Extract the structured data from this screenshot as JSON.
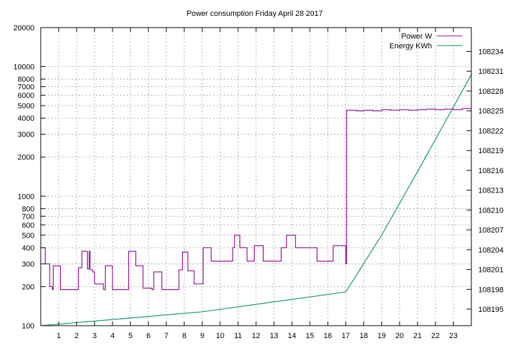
{
  "chart_data": {
    "type": "line",
    "title": "Power consumption Friday April 28 2017",
    "grid": true,
    "legend_position": "top-right",
    "x_axis": {
      "range": [
        0,
        24
      ],
      "ticks": [
        1,
        2,
        3,
        4,
        5,
        6,
        7,
        8,
        9,
        10,
        11,
        12,
        13,
        14,
        15,
        16,
        17,
        18,
        19,
        20,
        21,
        22,
        23
      ]
    },
    "y_axis_left": {
      "scale": "log",
      "range": [
        100,
        20000
      ],
      "ticks": [
        100,
        200,
        300,
        400,
        500,
        600,
        700,
        800,
        1000,
        2000,
        3000,
        4000,
        5000,
        6000,
        7000,
        8000,
        10000,
        20000
      ],
      "tick_labels": [
        "100",
        "200",
        "300",
        "400",
        "500",
        "600",
        "700",
        "800",
        "1000",
        "2000",
        "3000",
        "4000",
        "5000",
        "6000",
        "7000",
        "8000",
        "10000",
        "20000"
      ]
    },
    "y_axis_right": {
      "scale": "linear",
      "range": [
        108192.5,
        108237.6
      ],
      "ticks": [
        108195,
        108198,
        108201,
        108204,
        108207,
        108210,
        108213,
        108216,
        108219,
        108222,
        108225,
        108228,
        108231,
        108234
      ]
    },
    "series": [
      {
        "name": "Power W",
        "axis": "left",
        "color": "#8b008b",
        "step": true,
        "points": [
          [
            0.0,
            400
          ],
          [
            0.25,
            300
          ],
          [
            0.5,
            200
          ],
          [
            0.65,
            190
          ],
          [
            0.7,
            290
          ],
          [
            1.1,
            190
          ],
          [
            2.1,
            280
          ],
          [
            2.3,
            375
          ],
          [
            2.6,
            275
          ],
          [
            2.7,
            375
          ],
          [
            2.75,
            270
          ],
          [
            2.9,
            260
          ],
          [
            3.0,
            210
          ],
          [
            3.5,
            190
          ],
          [
            3.6,
            290
          ],
          [
            4.0,
            190
          ],
          [
            4.9,
            375
          ],
          [
            5.3,
            290
          ],
          [
            5.7,
            195
          ],
          [
            6.2,
            190
          ],
          [
            6.3,
            260
          ],
          [
            6.75,
            190
          ],
          [
            7.7,
            270
          ],
          [
            7.9,
            370
          ],
          [
            8.2,
            265
          ],
          [
            8.55,
            210
          ],
          [
            9.05,
            400
          ],
          [
            9.5,
            315
          ],
          [
            10.7,
            400
          ],
          [
            10.8,
            500
          ],
          [
            11.1,
            400
          ],
          [
            11.5,
            315
          ],
          [
            11.9,
            415
          ],
          [
            12.4,
            315
          ],
          [
            13.4,
            400
          ],
          [
            13.7,
            500
          ],
          [
            14.2,
            400
          ],
          [
            15.4,
            315
          ],
          [
            16.3,
            415
          ],
          [
            17.0,
            300
          ],
          [
            17.05,
            4600
          ],
          [
            17.6,
            4550
          ],
          [
            18.0,
            4600
          ],
          [
            18.5,
            4550
          ],
          [
            19.0,
            4650
          ],
          [
            19.5,
            4600
          ],
          [
            20.0,
            4650
          ],
          [
            20.5,
            4600
          ],
          [
            21.0,
            4650
          ],
          [
            21.5,
            4700
          ],
          [
            22.0,
            4650
          ],
          [
            22.5,
            4700
          ],
          [
            23.0,
            4650
          ],
          [
            23.5,
            4750
          ],
          [
            24.0,
            4750
          ]
        ]
      },
      {
        "name": "Energy KWh",
        "axis": "right",
        "color": "#008b73",
        "step": false,
        "points": [
          [
            0,
            108192.5
          ],
          [
            9,
            108194.6
          ],
          [
            17,
            108197.6
          ],
          [
            19,
            108206.2
          ],
          [
            21,
            108215.8
          ],
          [
            24,
            108230.5
          ]
        ]
      }
    ]
  }
}
